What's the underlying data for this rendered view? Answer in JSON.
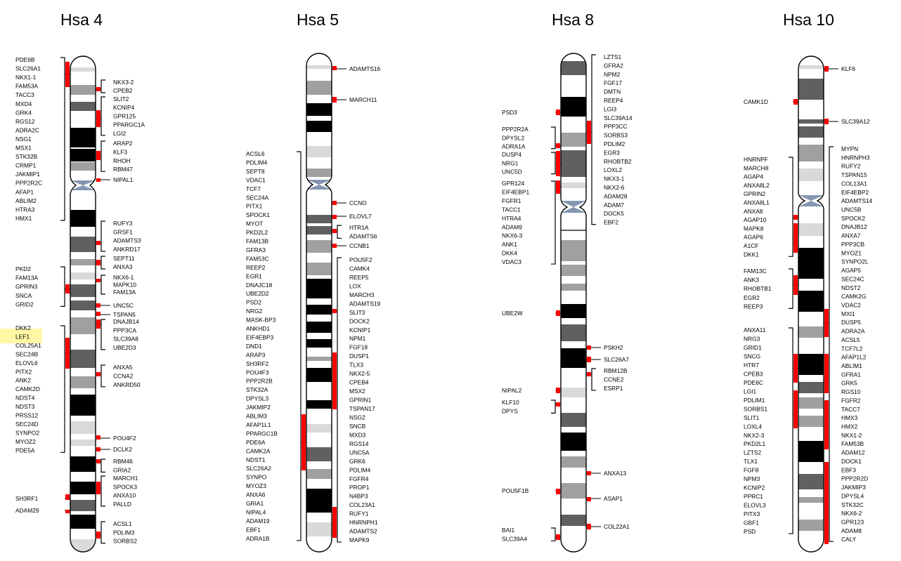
{
  "chromosomes": [
    {
      "id": "hsa4",
      "title": "Hsa 4",
      "groups": [
        [
          "PDE6B",
          "SLC26A1",
          "NKX1-1",
          "FAM53A",
          "TACC3",
          "MXD4",
          "GRK4",
          "RGS12",
          "ADRA2C",
          "NSG1",
          "MSX1",
          "STK32B",
          "CRMP1",
          "JAKMIP1",
          "PPP2R2C",
          "AFAP1",
          "ABLIM2",
          "HTRA3",
          "HMX1"
        ],
        [
          "NKX3-2",
          "CPEB2"
        ],
        [
          "SLIT2",
          "KCNIP4",
          "GPR125",
          "PPARGC1A",
          "LGI2"
        ],
        [
          "ARAP2",
          "KLF3",
          "RHOH",
          "RBM47"
        ],
        [
          "NIPAL1"
        ],
        [
          "RUFY3",
          "GRSF1",
          "ADAMTS3",
          "ANKRD17"
        ],
        [
          "SEPT11",
          "ANXA3"
        ],
        [
          "PKD2",
          "FAM13A",
          "GPRIN3",
          "SNCA",
          "GRID2"
        ],
        [
          "NKX6-1",
          "MAPK10",
          "FAM13A"
        ],
        [
          "UNC5C"
        ],
        [
          "TSPAN5"
        ],
        [
          "DKK2",
          "LEF1",
          "COL25A1",
          "SEC24B",
          "ELOVL6",
          "PITX2",
          "ANK2",
          "CAMK2D",
          "NDST4",
          "NDST3",
          "PRSS12",
          "SEC24D",
          "SYNPO2",
          "MYOZ2",
          "PDE5A"
        ],
        [
          "DNAJB14",
          "PPP3CA",
          "SLC39A8",
          "UBE2D3"
        ],
        [
          "ANXA5",
          "CCNA2",
          "ANKRD50"
        ],
        [
          "POU4F2"
        ],
        [
          "DCLK2"
        ],
        [
          "RBM46",
          "GRIA2"
        ],
        [
          "MARCH1",
          "SPOCK3",
          "ANXA10",
          "PALLD"
        ],
        [
          "SH3RF1"
        ],
        [
          "ADAM29"
        ],
        [
          "ACSL1",
          "PDLIM3",
          "SORBS2"
        ]
      ]
    },
    {
      "id": "hsa5",
      "title": "Hsa 5",
      "groups": [
        [
          "ADAMTS16"
        ],
        [
          "MARCH11"
        ],
        [
          "ACSL6",
          "PDLIM4",
          "SEPT8",
          "VDAC1",
          "TCF7",
          "SEC24A",
          "PITX1",
          "SPOCK1",
          "MYOT",
          "PKD2L2",
          "FAM13B",
          "GFRA3",
          "FAM53C",
          "REEP2",
          "EGR1",
          "DNAJC18",
          "UBE2D2",
          "PSD2",
          "NRG2",
          "MASK-BP3",
          "ANKHD1",
          "EIF4EBP3",
          "DND1",
          "ARAP3",
          "SH3RF2",
          "POU4F3",
          "PPP2R2B",
          "STK32A",
          "DPYSL3",
          "JAKMIP2",
          "ABLIM3",
          "AFAP1L1",
          "PPARGC1B",
          "PDE6A",
          "CAMK2A",
          "NDST1",
          "SLC26A2",
          "SYNPO",
          "MYOZ3",
          "ANXA6",
          "GRIA1",
          "NIPAL4",
          "ADAM19",
          "EBF1",
          "ADRA1B"
        ],
        [
          "CCNO"
        ],
        [
          "ELOVL7"
        ],
        [
          "HTR1A",
          "ADAMTS6"
        ],
        [
          "CCNB1"
        ],
        [
          "POU5F2",
          "CAMK4",
          "REEP5",
          "LOX",
          "MARCH3",
          "ADAMTS19",
          "SLIT3",
          "DOCK2",
          "KCNIP1",
          "NPM1",
          "FGF18",
          "DUSP1",
          "TLX3",
          "NKX2-5",
          "CPEB4",
          "MSX2",
          "GPRIN1",
          "TSPAN17",
          "NSG2",
          "SNCB",
          "MXD3",
          "RGS14",
          "UNC5A",
          "GRK6",
          "PDLIM4",
          "FGFR4",
          "PROP1",
          "N4BP3",
          "COL23A1",
          "RUFY1",
          "HNRNPH1",
          "ADAMTS2",
          "MAPK9"
        ]
      ]
    },
    {
      "id": "hsa8",
      "title": "Hsa 8",
      "groups": [
        [
          "LZTS1",
          "GFRA2",
          "NPM2",
          "FGF17",
          "DMTN",
          "REEP4",
          "LGI3",
          "SLC39A14",
          "PPP3CC",
          "SORBS3",
          "PDLIM2",
          "EGR3",
          "RHOBTB2",
          "LOXL2",
          "NKX3-1",
          "NKX2-6",
          "ADAM28",
          "ADAM7",
          "DOCK5",
          "EBF2"
        ],
        [
          "PSD3"
        ],
        [
          "PPP2R2A",
          "DPYSL2",
          "ADRA1A"
        ],
        [
          "DUSP4",
          "NRG1",
          "UNC5D"
        ],
        [
          "GPR124",
          "EIF4EBP1",
          "FGFR1",
          "TACC1",
          "HTRA4",
          "ADAM9",
          "NKX6-3",
          "ANK1",
          "DKK4",
          "VDAC3"
        ],
        [
          "UBE2W"
        ],
        [
          "PSKH2"
        ],
        [
          "SLC26A7"
        ],
        [
          "RBM12B",
          "CCNE2",
          "ESRP1"
        ],
        [
          "NIPAL2"
        ],
        [
          "KLF10",
          "DPYS"
        ],
        [
          "ANXA13"
        ],
        [
          "POU5F1B"
        ],
        [
          "ASAP1"
        ],
        [
          "COL22A1"
        ],
        [
          "BAI1",
          "SLC39A4"
        ]
      ]
    },
    {
      "id": "hsa10",
      "title": "Hsa 10",
      "groups": [
        [
          "KLF6"
        ],
        [
          "CAMK1D"
        ],
        [
          "SLC39A12"
        ],
        [
          "MYPN",
          "HNRNPH3",
          "RUFY2",
          "TSPAN15",
          "COL13A1",
          "EIF4EBP2",
          "ADAMTS14",
          "UNC5B",
          "SPOCK2",
          "DNAJB12",
          "ANXA7",
          "PPP3CB",
          "MYOZ1",
          "SYNPO2L",
          "AGAP5",
          "SEC24C",
          "NDST2",
          "CAMK2G",
          "VDAC2",
          "MXI1",
          "DUSP5",
          "ADRA2A",
          "ACSL5",
          "TCF7L2",
          "AFAP1L2",
          "ABLIM1",
          "GFRA1",
          "GRK5",
          "RGS10",
          "FGFR2",
          "TACC7",
          "HMX3",
          "HMX2",
          "NKX1-2",
          "FAM53B",
          "ADAM12",
          "DOCK1",
          "EBF3",
          "PPP2R2D",
          "JAKMIP3",
          "DPYSL4",
          "STK32C",
          "NKX6-2",
          "GPR123",
          "ADAM8",
          "CALY"
        ],
        [
          "HNRNPF",
          "MARCH8",
          "AGAP4",
          "ANXA8L2",
          "GPRIN2",
          "ANXA8L1",
          "ANXA8",
          "AGAP10",
          "MAPK8",
          "AGAP6",
          "A1CF",
          "DKK1"
        ],
        [
          "FAM13C",
          "ANK3",
          "RHOBTB1",
          "EGR2",
          "REEP3"
        ],
        [
          "ANXA11",
          "NRG3",
          "GRID1",
          "SNCG",
          "HTR7",
          "CPEB3",
          "PDE6C",
          "LGI1",
          "PDLIM1",
          "SORBS1",
          "SLIT1",
          "LOXL4",
          "NKX2-3",
          "PKD2L1",
          "LZTS2",
          "TLX1",
          "FGF8",
          "NPM3",
          "KCNIP2",
          "PPRC1",
          "ELOVL3",
          "PITX3",
          "GBF1",
          "PSD"
        ]
      ]
    }
  ]
}
